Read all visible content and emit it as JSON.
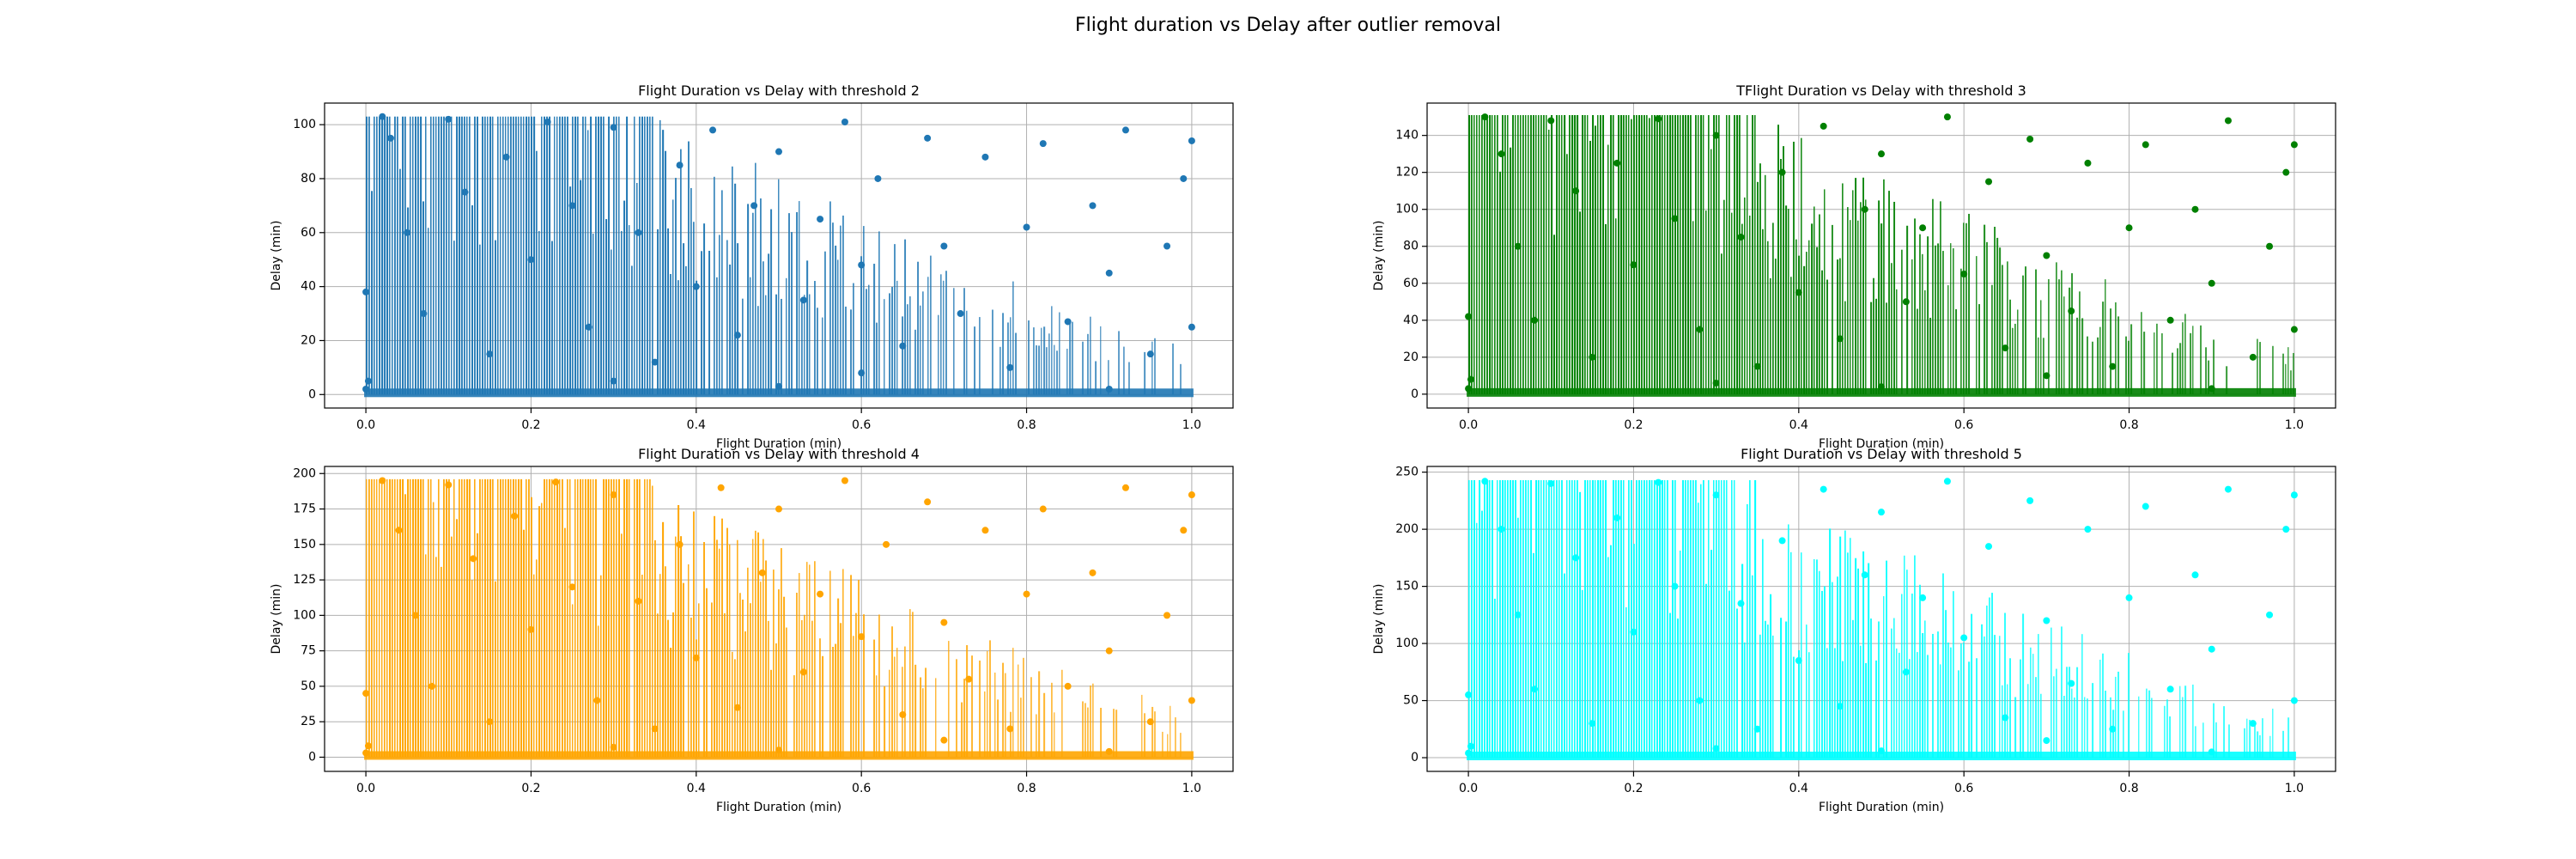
{
  "figure": {
    "suptitle": "Flight duration vs Delay after outlier removal"
  },
  "chart_data": [
    {
      "type": "scatter",
      "title": "Flight Duration vs Delay with threshold 2",
      "xlabel": "Flight Duration (min)",
      "ylabel": "Delay (min)",
      "color": "#1f77b4",
      "xlim": [
        -0.05,
        1.05
      ],
      "ylim": [
        -5,
        108
      ],
      "xticks": [
        0.0,
        0.2,
        0.4,
        0.6,
        0.8,
        1.0
      ],
      "xtick_labels": [
        "0.0",
        "0.2",
        "0.4",
        "0.6",
        "0.8",
        "1.0"
      ],
      "yticks": [
        0,
        20,
        40,
        60,
        80,
        100
      ],
      "ytick_labels": [
        "0",
        "20",
        "40",
        "60",
        "80",
        "100"
      ],
      "ymax_value": 103,
      "grid": true,
      "points": [
        [
          0.0,
          2
        ],
        [
          0.0,
          38
        ],
        [
          0.003,
          5
        ],
        [
          0.02,
          103
        ],
        [
          0.03,
          95
        ],
        [
          0.05,
          60
        ],
        [
          0.07,
          30
        ],
        [
          0.1,
          102
        ],
        [
          0.12,
          75
        ],
        [
          0.15,
          15
        ],
        [
          0.17,
          88
        ],
        [
          0.2,
          50
        ],
        [
          0.22,
          101
        ],
        [
          0.25,
          70
        ],
        [
          0.27,
          25
        ],
        [
          0.3,
          99
        ],
        [
          0.33,
          60
        ],
        [
          0.35,
          12
        ],
        [
          0.38,
          85
        ],
        [
          0.4,
          40
        ],
        [
          0.42,
          98
        ],
        [
          0.45,
          22
        ],
        [
          0.47,
          70
        ],
        [
          0.5,
          90
        ],
        [
          0.53,
          35
        ],
        [
          0.55,
          65
        ],
        [
          0.58,
          101
        ],
        [
          0.6,
          48
        ],
        [
          0.62,
          80
        ],
        [
          0.65,
          18
        ],
        [
          0.68,
          95
        ],
        [
          0.7,
          55
        ],
        [
          0.72,
          30
        ],
        [
          0.75,
          88
        ],
        [
          0.78,
          10
        ],
        [
          0.8,
          62
        ],
        [
          0.82,
          93
        ],
        [
          0.85,
          27
        ],
        [
          0.88,
          70
        ],
        [
          0.9,
          45
        ],
        [
          0.92,
          98
        ],
        [
          0.95,
          15
        ],
        [
          0.97,
          55
        ],
        [
          0.99,
          80
        ],
        [
          1.0,
          94
        ],
        [
          1.0,
          25
        ],
        [
          0.5,
          3
        ],
        [
          0.3,
          5
        ],
        [
          0.9,
          2
        ],
        [
          0.6,
          8
        ]
      ]
    },
    {
      "type": "scatter",
      "title": "TFlight Duration vs Delay with threshold 3",
      "xlabel": "Flight Duration (min)",
      "ylabel": "Delay (min)",
      "color": "#008000",
      "xlim": [
        -0.05,
        1.05
      ],
      "ylim": [
        -7.5,
        157.5
      ],
      "xticks": [
        0.0,
        0.2,
        0.4,
        0.6,
        0.8,
        1.0
      ],
      "xtick_labels": [
        "0.0",
        "0.2",
        "0.4",
        "0.6",
        "0.8",
        "1.0"
      ],
      "yticks": [
        0,
        20,
        40,
        60,
        80,
        100,
        120,
        140
      ],
      "ytick_labels": [
        "0",
        "20",
        "40",
        "60",
        "80",
        "100",
        "120",
        "140"
      ],
      "ymax_value": 151,
      "grid": true,
      "points": [
        [
          0.0,
          3
        ],
        [
          0.0,
          42
        ],
        [
          0.003,
          8
        ],
        [
          0.02,
          150
        ],
        [
          0.04,
          130
        ],
        [
          0.06,
          80
        ],
        [
          0.08,
          40
        ],
        [
          0.1,
          148
        ],
        [
          0.13,
          110
        ],
        [
          0.15,
          20
        ],
        [
          0.18,
          125
        ],
        [
          0.2,
          70
        ],
        [
          0.23,
          149
        ],
        [
          0.25,
          95
        ],
        [
          0.28,
          35
        ],
        [
          0.3,
          140
        ],
        [
          0.33,
          85
        ],
        [
          0.35,
          15
        ],
        [
          0.38,
          120
        ],
        [
          0.4,
          55
        ],
        [
          0.43,
          145
        ],
        [
          0.45,
          30
        ],
        [
          0.48,
          100
        ],
        [
          0.5,
          130
        ],
        [
          0.53,
          50
        ],
        [
          0.55,
          90
        ],
        [
          0.58,
          150
        ],
        [
          0.6,
          65
        ],
        [
          0.63,
          115
        ],
        [
          0.65,
          25
        ],
        [
          0.68,
          138
        ],
        [
          0.7,
          75
        ],
        [
          0.73,
          45
        ],
        [
          0.75,
          125
        ],
        [
          0.78,
          15
        ],
        [
          0.8,
          90
        ],
        [
          0.82,
          135
        ],
        [
          0.85,
          40
        ],
        [
          0.88,
          100
        ],
        [
          0.9,
          60
        ],
        [
          0.92,
          148
        ],
        [
          0.95,
          20
        ],
        [
          0.97,
          80
        ],
        [
          0.99,
          120
        ],
        [
          1.0,
          135
        ],
        [
          1.0,
          35
        ],
        [
          0.5,
          4
        ],
        [
          0.3,
          6
        ],
        [
          0.9,
          3
        ],
        [
          0.7,
          10
        ]
      ]
    },
    {
      "type": "scatter",
      "title": "Flight Duration vs Delay with threshold 4",
      "xlabel": "Flight Duration (min)",
      "ylabel": "Delay (min)",
      "color": "#ffa500",
      "xlim": [
        -0.05,
        1.05
      ],
      "ylim": [
        -10,
        205
      ],
      "xticks": [
        0.0,
        0.2,
        0.4,
        0.6,
        0.8,
        1.0
      ],
      "xtick_labels": [
        "0.0",
        "0.2",
        "0.4",
        "0.6",
        "0.8",
        "1.0"
      ],
      "yticks": [
        0,
        25,
        50,
        75,
        100,
        125,
        150,
        175,
        200
      ],
      "ytick_labels": [
        "0",
        "25",
        "50",
        "75",
        "100",
        "125",
        "150",
        "175",
        "200"
      ],
      "ymax_value": 196,
      "grid": true,
      "points": [
        [
          0.0,
          3
        ],
        [
          0.0,
          45
        ],
        [
          0.003,
          8
        ],
        [
          0.02,
          195
        ],
        [
          0.04,
          160
        ],
        [
          0.06,
          100
        ],
        [
          0.08,
          50
        ],
        [
          0.1,
          192
        ],
        [
          0.13,
          140
        ],
        [
          0.15,
          25
        ],
        [
          0.18,
          170
        ],
        [
          0.2,
          90
        ],
        [
          0.23,
          194
        ],
        [
          0.25,
          120
        ],
        [
          0.28,
          40
        ],
        [
          0.3,
          185
        ],
        [
          0.33,
          110
        ],
        [
          0.35,
          20
        ],
        [
          0.38,
          150
        ],
        [
          0.4,
          70
        ],
        [
          0.43,
          190
        ],
        [
          0.45,
          35
        ],
        [
          0.48,
          130
        ],
        [
          0.5,
          175
        ],
        [
          0.53,
          60
        ],
        [
          0.55,
          115
        ],
        [
          0.58,
          195
        ],
        [
          0.6,
          85
        ],
        [
          0.63,
          150
        ],
        [
          0.65,
          30
        ],
        [
          0.68,
          180
        ],
        [
          0.7,
          95
        ],
        [
          0.73,
          55
        ],
        [
          0.75,
          160
        ],
        [
          0.78,
          20
        ],
        [
          0.8,
          115
        ],
        [
          0.82,
          175
        ],
        [
          0.85,
          50
        ],
        [
          0.88,
          130
        ],
        [
          0.9,
          75
        ],
        [
          0.92,
          190
        ],
        [
          0.95,
          25
        ],
        [
          0.97,
          100
        ],
        [
          0.99,
          160
        ],
        [
          1.0,
          185
        ],
        [
          1.0,
          40
        ],
        [
          0.5,
          5
        ],
        [
          0.3,
          7
        ],
        [
          0.9,
          4
        ],
        [
          0.7,
          12
        ]
      ]
    },
    {
      "type": "scatter",
      "title": "Flight Duration vs Delay with threshold 5",
      "xlabel": "Flight Duration (min)",
      "ylabel": "Delay (min)",
      "color": "#00ffff",
      "xlim": [
        -0.05,
        1.05
      ],
      "ylim": [
        -12,
        255
      ],
      "xticks": [
        0.0,
        0.2,
        0.4,
        0.6,
        0.8,
        1.0
      ],
      "xtick_labels": [
        "0.0",
        "0.2",
        "0.4",
        "0.6",
        "0.8",
        "1.0"
      ],
      "yticks": [
        0,
        50,
        100,
        150,
        200,
        250
      ],
      "ytick_labels": [
        "0",
        "50",
        "100",
        "150",
        "200",
        "250"
      ],
      "ymax_value": 243,
      "grid": true,
      "points": [
        [
          0.0,
          4
        ],
        [
          0.0,
          55
        ],
        [
          0.003,
          10
        ],
        [
          0.02,
          242
        ],
        [
          0.04,
          200
        ],
        [
          0.06,
          125
        ],
        [
          0.08,
          60
        ],
        [
          0.1,
          240
        ],
        [
          0.13,
          175
        ],
        [
          0.15,
          30
        ],
        [
          0.18,
          210
        ],
        [
          0.2,
          110
        ],
        [
          0.23,
          241
        ],
        [
          0.25,
          150
        ],
        [
          0.28,
          50
        ],
        [
          0.3,
          230
        ],
        [
          0.33,
          135
        ],
        [
          0.35,
          25
        ],
        [
          0.38,
          190
        ],
        [
          0.4,
          85
        ],
        [
          0.43,
          235
        ],
        [
          0.45,
          45
        ],
        [
          0.48,
          160
        ],
        [
          0.5,
          215
        ],
        [
          0.53,
          75
        ],
        [
          0.55,
          140
        ],
        [
          0.58,
          242
        ],
        [
          0.6,
          105
        ],
        [
          0.63,
          185
        ],
        [
          0.65,
          35
        ],
        [
          0.68,
          225
        ],
        [
          0.7,
          120
        ],
        [
          0.73,
          65
        ],
        [
          0.75,
          200
        ],
        [
          0.78,
          25
        ],
        [
          0.8,
          140
        ],
        [
          0.82,
          220
        ],
        [
          0.85,
          60
        ],
        [
          0.88,
          160
        ],
        [
          0.9,
          95
        ],
        [
          0.92,
          235
        ],
        [
          0.95,
          30
        ],
        [
          0.97,
          125
        ],
        [
          0.99,
          200
        ],
        [
          1.0,
          230
        ],
        [
          1.0,
          50
        ],
        [
          0.5,
          6
        ],
        [
          0.3,
          8
        ],
        [
          0.9,
          5
        ],
        [
          0.7,
          15
        ]
      ]
    }
  ]
}
